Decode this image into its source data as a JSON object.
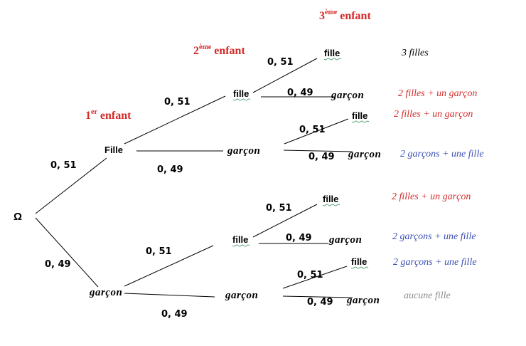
{
  "root": "Ω",
  "colors": {
    "red": "#d42a2a",
    "blue": "#3b4fb4",
    "black": "#000000",
    "gray": "#8c8c8c"
  },
  "generations": {
    "first": {
      "num": "1",
      "sup": "er",
      "word": " enfant"
    },
    "second": {
      "num": "2",
      "sup": "ème",
      "word": " enfant"
    },
    "third": {
      "num": "3",
      "sup": "ème",
      "word": " enfant"
    }
  },
  "nodes": {
    "l1_fille": "Fille",
    "l1_garcon": "garçon",
    "l2_fille_a": "fille",
    "l2_garcon_a": "garçon",
    "l2_fille_b": "fille",
    "l2_garcon_b": "garçon",
    "l3_1": "fille",
    "l3_2": "garçon",
    "l3_3": "fille",
    "l3_4": "garçon",
    "l3_5": "fille",
    "l3_6": "garçon",
    "l3_7": "fille",
    "l3_8": "garçon"
  },
  "probabilities": {
    "root_fille": "0, 51",
    "root_garcon": "0, 49",
    "fille_fille": "0, 51",
    "fille_garcon": "0, 49",
    "garcon_fille": "0, 51",
    "garcon_garcon": "0, 49",
    "ff_fille": "0, 51",
    "ff_garcon": "0, 49",
    "fg_fille": "0, 51",
    "fg_garcon": "0, 49",
    "gf_fille": "0, 51",
    "gf_garcon": "0, 49",
    "gg_fille": "0, 51",
    "gg_garcon": "0, 49"
  },
  "outcomes": [
    {
      "text": "3 filles",
      "color": "#000000"
    },
    {
      "text": "2 filles + un garçon",
      "color": "#d42a2a"
    },
    {
      "text": "2 filles + un garçon",
      "color": "#d42a2a"
    },
    {
      "text": "2 garçons + une fille",
      "color": "#3b4fb4"
    },
    {
      "text": "2 filles + un garçon",
      "color": "#d42a2a"
    },
    {
      "text": "2 garçons + une fille",
      "color": "#3b4fb4"
    },
    {
      "text": "2 garçons + une fille",
      "color": "#3b4fb4"
    },
    {
      "text": "aucune fille",
      "color": "#8c8c8c"
    }
  ]
}
